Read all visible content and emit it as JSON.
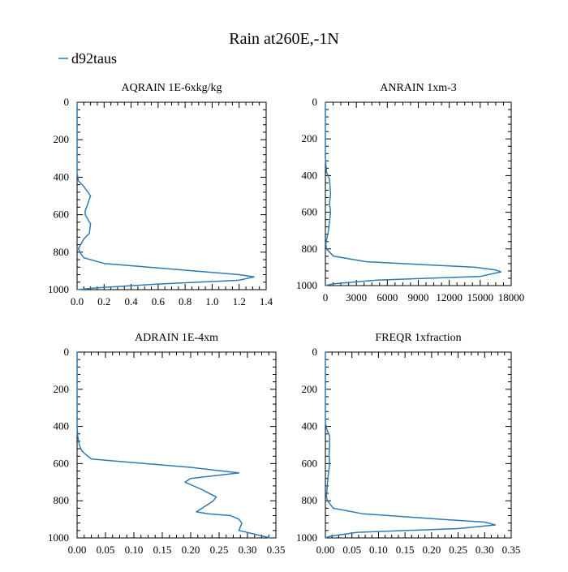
{
  "figure": {
    "title": "Rain at260E,-1N",
    "legend": [
      "d92taus"
    ]
  },
  "colors": {
    "series": "#2f79b5",
    "axes": "#000000"
  },
  "chart_data": [
    {
      "type": "line",
      "title": "AQRAIN  1E-6xkg/kg",
      "xlabel": "",
      "ylabel": "",
      "xlim": [
        0,
        1.4
      ],
      "ylim": [
        1000,
        0
      ],
      "x_ticks": [
        0,
        0.2,
        0.4,
        0.6,
        0.8,
        1.0,
        1.2,
        1.4
      ],
      "x_tick_labels": [
        "0.0",
        "0.2",
        "0.4",
        "0.6",
        "0.8",
        "1.0",
        "1.2",
        "1.4"
      ],
      "y_ticks": [
        0,
        200,
        400,
        600,
        800,
        1000
      ],
      "y_tick_labels": [
        "0",
        "200",
        "400",
        "600",
        "800",
        "1000"
      ],
      "legend_position": "top-left",
      "series": [
        {
          "name": "d92taus",
          "x": [
            0,
            0,
            0,
            0,
            0,
            0.01,
            0.05,
            0.1,
            0.08,
            0.06,
            0.06,
            0.1,
            0.09,
            0.05,
            0.01,
            0.02,
            0.05,
            0.2,
            0.7,
            1.2,
            1.31,
            1.2,
            0.6,
            0.15,
            0
          ],
          "y": [
            0,
            100,
            200,
            300,
            380,
            420,
            450,
            500,
            540,
            580,
            600,
            650,
            700,
            730,
            780,
            800,
            830,
            860,
            890,
            920,
            932,
            950,
            970,
            990,
            1000
          ]
        }
      ]
    },
    {
      "type": "line",
      "title": "ANRAIN  1xm-3",
      "xlabel": "",
      "ylabel": "",
      "xlim": [
        0,
        18000
      ],
      "ylim": [
        1000,
        0
      ],
      "x_ticks": [
        0,
        3000,
        6000,
        9000,
        12000,
        15000,
        18000
      ],
      "x_tick_labels": [
        "0",
        "3000",
        "6000",
        "9000",
        "12000",
        "15000",
        "18000"
      ],
      "y_ticks": [
        0,
        200,
        400,
        600,
        800,
        1000
      ],
      "y_tick_labels": [
        "0",
        "200",
        "400",
        "600",
        "800",
        "1000"
      ],
      "series": [
        {
          "name": "d92taus",
          "x": [
            0,
            0,
            0,
            0,
            100,
            400,
            500,
            400,
            500,
            400,
            300,
            50,
            100,
            800,
            4000,
            14500,
            16500,
            17000,
            15000,
            5000,
            800,
            0
          ],
          "y": [
            0,
            100,
            200,
            300,
            380,
            420,
            500,
            550,
            600,
            650,
            700,
            770,
            800,
            840,
            870,
            900,
            915,
            925,
            950,
            970,
            990,
            1000
          ]
        }
      ]
    },
    {
      "type": "line",
      "title": "ADRAIN  1E-4xm",
      "xlabel": "",
      "ylabel": "",
      "xlim": [
        0,
        0.35
      ],
      "ylim": [
        1000,
        0
      ],
      "x_ticks": [
        0,
        0.05,
        0.1,
        0.15,
        0.2,
        0.25,
        0.3,
        0.35
      ],
      "x_tick_labels": [
        "0.00",
        "0.05",
        "0.10",
        "0.15",
        "0.20",
        "0.25",
        "0.30",
        "0.35"
      ],
      "y_ticks": [
        0,
        200,
        400,
        600,
        800,
        1000
      ],
      "y_tick_labels": [
        "0",
        "200",
        "400",
        "600",
        "800",
        "1000"
      ],
      "series": [
        {
          "name": "d92taus",
          "x": [
            0,
            0,
            0,
            0.001,
            0.004,
            0.008,
            0.015,
            0.025,
            0.12,
            0.2,
            0.285,
            0.2,
            0.19,
            0.22,
            0.245,
            0.24,
            0.22,
            0.21,
            0.23,
            0.27,
            0.285,
            0.29,
            0.285,
            0.32,
            0.34
          ],
          "y": [
            0,
            200,
            400,
            450,
            500,
            530,
            550,
            575,
            600,
            620,
            650,
            680,
            700,
            740,
            780,
            800,
            840,
            860,
            870,
            880,
            900,
            920,
            960,
            985,
            1000
          ]
        }
      ]
    },
    {
      "type": "line",
      "title": "FREQR  1xfraction",
      "xlabel": "",
      "ylabel": "",
      "xlim": [
        0,
        0.35
      ],
      "ylim": [
        1000,
        0
      ],
      "x_ticks": [
        0,
        0.05,
        0.1,
        0.15,
        0.2,
        0.25,
        0.3,
        0.35
      ],
      "x_tick_labels": [
        "0.00",
        "0.05",
        "0.10",
        "0.15",
        "0.20",
        "0.25",
        "0.30",
        "0.35"
      ],
      "y_ticks": [
        0,
        200,
        400,
        600,
        800,
        1000
      ],
      "y_tick_labels": [
        "0",
        "200",
        "400",
        "600",
        "800",
        "1000"
      ],
      "series": [
        {
          "name": "d92taus",
          "x": [
            0,
            0,
            0,
            0.003,
            0.008,
            0.008,
            0.007,
            0.008,
            0.006,
            0.004,
            0.002,
            0.004,
            0.015,
            0.07,
            0.22,
            0.3,
            0.32,
            0.25,
            0.06,
            0.01,
            0
          ],
          "y": [
            0,
            200,
            380,
            420,
            450,
            500,
            550,
            600,
            650,
            700,
            780,
            800,
            840,
            870,
            900,
            915,
            930,
            950,
            970,
            990,
            1000
          ]
        }
      ]
    }
  ]
}
